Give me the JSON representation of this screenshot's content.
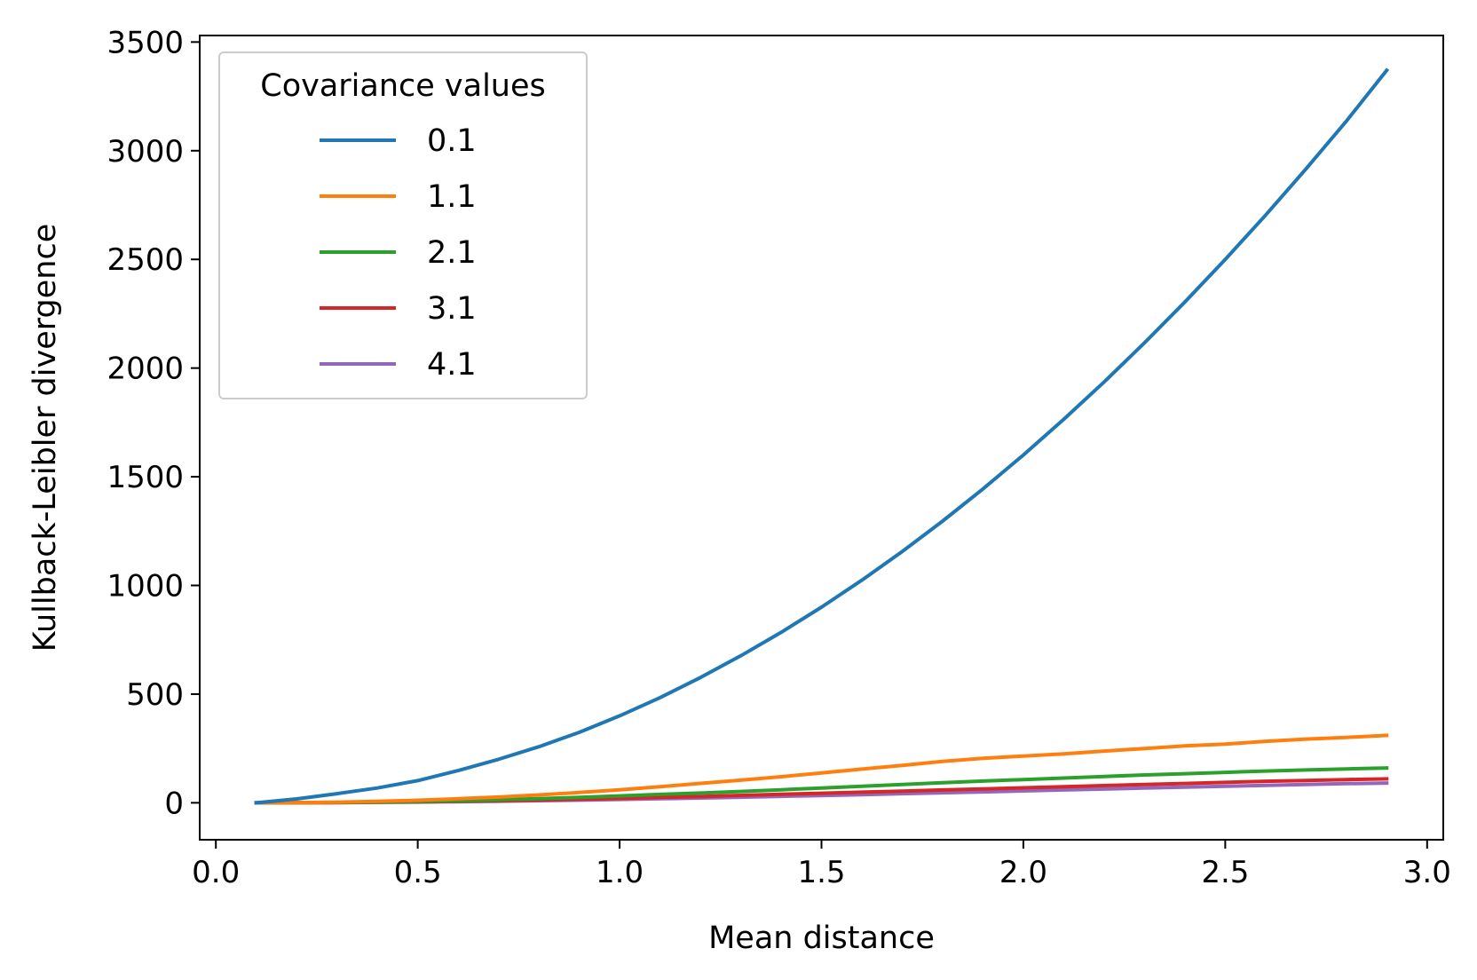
{
  "chart_data": {
    "type": "line",
    "xlabel": "Mean distance",
    "ylabel": "Kullback-Leibler divergence",
    "xlim": [
      -0.04,
      3.04
    ],
    "ylim": [
      -170,
      3530
    ],
    "xticks": [
      "0.0",
      "0.5",
      "1.0",
      "1.5",
      "2.0",
      "2.5",
      "3.0"
    ],
    "xtick_values": [
      0,
      0.5,
      1,
      1.5,
      2,
      2.5,
      3
    ],
    "yticks": [
      "0",
      "500",
      "1000",
      "1500",
      "2000",
      "2500",
      "3000",
      "3500"
    ],
    "ytick_values": [
      0,
      500,
      1000,
      1500,
      2000,
      2500,
      3000,
      3500
    ],
    "grid": false,
    "legend": {
      "title": "Covariance values",
      "placement": "upper left"
    },
    "x": [
      0.1,
      0.2,
      0.3,
      0.4,
      0.5,
      0.6,
      0.7,
      0.8,
      0.9,
      1.0,
      1.1,
      1.2,
      1.3,
      1.4,
      1.5,
      1.6,
      1.7,
      1.8,
      1.9,
      2.0,
      2.1,
      2.2,
      2.3,
      2.4,
      2.5,
      2.6,
      2.7,
      2.8,
      2.9
    ],
    "series": [
      {
        "name": "0.1",
        "color": "#1f77b4",
        "values": [
          0,
          18,
          42,
          68,
          102,
          148,
          200,
          258,
          324,
          400,
          484,
          576,
          676,
          784,
          900,
          1024,
          1156,
          1296,
          1444,
          1600,
          1764,
          1936,
          2116,
          2304,
          2500,
          2704,
          2916,
          3136,
          3370
        ]
      },
      {
        "name": "1.1",
        "color": "#ff7f0e",
        "values": [
          0,
          0.8,
          3,
          6.7,
          11.8,
          18.5,
          26.6,
          36.2,
          47.3,
          59.8,
          73.8,
          89.3,
          104,
          120,
          137,
          155,
          172,
          190,
          205,
          215,
          225,
          238,
          250,
          262,
          270,
          283,
          293,
          301,
          310
        ]
      },
      {
        "name": "2.1",
        "color": "#2ca02c",
        "values": [
          0,
          0.4,
          1.5,
          3.5,
          6.2,
          9.8,
          14,
          19.2,
          25,
          31.7,
          38.5,
          45,
          52,
          60,
          68,
          76,
          84,
          92,
          100,
          107,
          114,
          121,
          128,
          134,
          140,
          146,
          151,
          156,
          160
        ]
      },
      {
        "name": "3.1",
        "color": "#d62728",
        "values": [
          0,
          0.3,
          1.1,
          2.4,
          4.2,
          6.5,
          9.3,
          12.5,
          16.2,
          20.2,
          24.6,
          29.2,
          34,
          39,
          44,
          49,
          54,
          59,
          64,
          69,
          74,
          79,
          84,
          89,
          94,
          99,
          103,
          107,
          110
        ]
      },
      {
        "name": "4.1",
        "color": "#9467bd",
        "values": [
          0,
          0.2,
          0.8,
          1.8,
          3.2,
          5,
          7.2,
          9.6,
          12.3,
          15.3,
          18.5,
          22,
          25.7,
          29.5,
          33.5,
          37.6,
          41.8,
          46,
          50.3,
          54.6,
          59,
          63.3,
          67.6,
          71.8,
          76,
          80,
          84,
          88,
          91
        ]
      }
    ]
  }
}
